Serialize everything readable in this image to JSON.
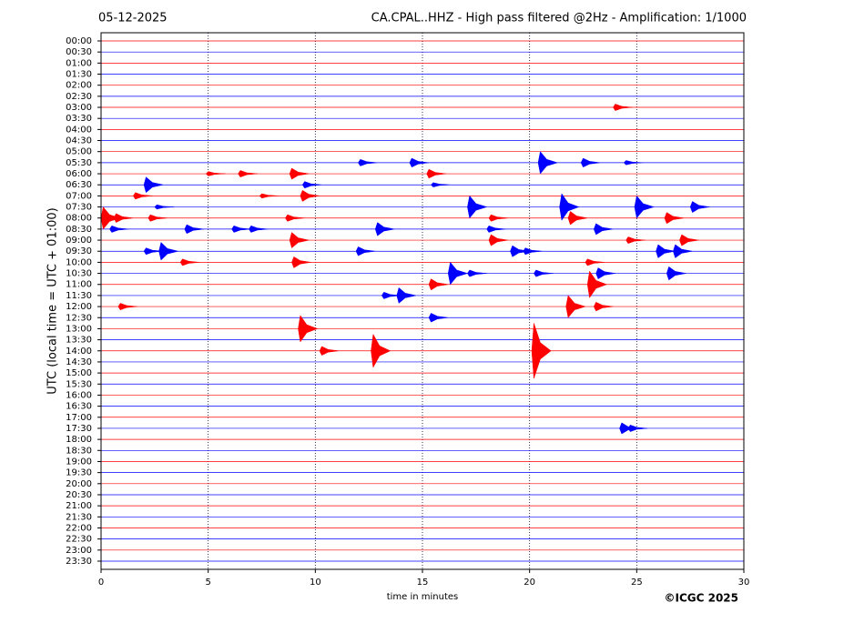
{
  "chart_data": {
    "type": "helicorder",
    "date": "05-12-2025",
    "title": "CA.CPAL..HHZ - High pass filtered @2Hz - Amplification: 1/1000",
    "ylabel": "UTC (local time = UTC + 01:00)",
    "xlabel": "time in minutes",
    "copyright": "©ICGC 2025",
    "categories": [
      "00:00",
      "00:30",
      "01:00",
      "01:30",
      "02:00",
      "02:30",
      "03:00",
      "03:30",
      "04:00",
      "04:30",
      "05:00",
      "05:30",
      "06:00",
      "06:30",
      "07:00",
      "07:30",
      "08:00",
      "08:30",
      "09:00",
      "09:30",
      "10:00",
      "10:30",
      "11:00",
      "11:30",
      "12:00",
      "12:30",
      "13:00",
      "13:30",
      "14:00",
      "14:30",
      "15:00",
      "15:30",
      "16:00",
      "16:30",
      "17:00",
      "17:30",
      "18:00",
      "18:30",
      "19:00",
      "19:30",
      "20:00",
      "20:30",
      "21:00",
      "21:30",
      "22:00",
      "22:30",
      "23:00",
      "23:30"
    ],
    "colors": [
      "#ff0000",
      "#0000ff"
    ],
    "xlim": [
      0,
      30
    ],
    "xticks": [
      0,
      5,
      10,
      15,
      20,
      25,
      30
    ],
    "grid": true,
    "events": {
      "row": [
        "03:00",
        "05:30",
        "05:30",
        "05:30",
        "05:30",
        "05:30",
        "06:00",
        "06:00",
        "06:00",
        "06:00",
        "06:30",
        "06:30",
        "06:30",
        "07:00",
        "07:00",
        "07:00",
        "07:30",
        "07:30",
        "07:30",
        "07:30",
        "07:30",
        "08:00",
        "08:00",
        "08:00",
        "08:00",
        "08:00",
        "08:00",
        "08:00",
        "08:30",
        "08:30",
        "08:30",
        "08:30",
        "08:30",
        "08:30",
        "08:30",
        "09:00",
        "09:00",
        "09:00",
        "09:00",
        "09:30",
        "09:30",
        "09:30",
        "09:30",
        "09:30",
        "09:30",
        "09:30",
        "10:00",
        "10:00",
        "10:00",
        "10:30",
        "10:30",
        "10:30",
        "10:30",
        "10:30",
        "11:00",
        "11:00",
        "11:30",
        "11:30",
        "12:00",
        "12:00",
        "12:00",
        "12:30",
        "13:00",
        "14:00",
        "14:00",
        "14:00",
        "17:30",
        "17:30"
      ],
      "x": [
        24.0,
        12.1,
        14.5,
        20.5,
        22.5,
        24.5,
        5.0,
        6.5,
        8.9,
        15.3,
        2.1,
        9.5,
        15.5,
        1.6,
        7.5,
        9.4,
        2.6,
        17.2,
        21.5,
        25.0,
        27.6,
        0.1,
        0.7,
        2.3,
        8.7,
        18.2,
        21.9,
        26.4,
        0.5,
        4.0,
        6.2,
        7.0,
        12.9,
        18.1,
        23.1,
        8.9,
        18.2,
        24.6,
        27.1,
        2.1,
        2.8,
        12.0,
        19.2,
        19.8,
        26.0,
        26.8,
        3.8,
        9.0,
        22.7,
        16.3,
        17.2,
        20.3,
        23.2,
        26.5,
        15.4,
        22.8,
        13.2,
        13.9,
        0.9,
        21.8,
        23.1,
        15.4,
        9.3,
        10.3,
        12.7,
        20.2,
        24.3,
        24.7
      ],
      "amp": [
        0.3,
        0.3,
        0.4,
        1.0,
        0.4,
        0.2,
        0.2,
        0.3,
        0.5,
        0.4,
        0.7,
        0.3,
        0.2,
        0.3,
        0.2,
        0.5,
        0.2,
        1.0,
        1.2,
        1.0,
        0.5,
        1.0,
        0.4,
        0.3,
        0.3,
        0.3,
        0.6,
        0.5,
        0.3,
        0.4,
        0.3,
        0.3,
        0.6,
        0.3,
        0.5,
        0.7,
        0.5,
        0.3,
        0.5,
        0.3,
        0.8,
        0.4,
        0.5,
        0.3,
        0.6,
        0.6,
        0.3,
        0.5,
        0.3,
        1.0,
        0.3,
        0.3,
        0.5,
        0.6,
        0.5,
        1.2,
        0.3,
        0.7,
        0.3,
        1.0,
        0.4,
        0.4,
        1.2,
        0.4,
        1.5,
        2.5,
        0.5,
        0.3
      ]
    }
  }
}
